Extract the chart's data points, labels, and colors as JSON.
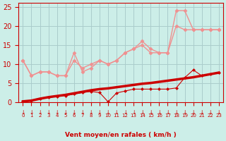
{
  "background_color": "#cceee8",
  "grid_color": "#aacccc",
  "x_labels": [
    "0",
    "1",
    "2",
    "3",
    "4",
    "5",
    "6",
    "7",
    "8",
    "9",
    "10",
    "11",
    "12",
    "13",
    "14",
    "15",
    "16",
    "17",
    "18",
    "19",
    "20",
    "21",
    "22",
    "23"
  ],
  "x_values": [
    0,
    1,
    2,
    3,
    4,
    5,
    6,
    7,
    8,
    9,
    10,
    11,
    12,
    13,
    14,
    15,
    16,
    17,
    18,
    19,
    20,
    21,
    22,
    23
  ],
  "ylim": [
    0,
    26
  ],
  "yticks": [
    0,
    5,
    10,
    15,
    20,
    25
  ],
  "series_rafales1": {
    "x": [
      0,
      1,
      2,
      3,
      4,
      5,
      6,
      7,
      8,
      9,
      10,
      11,
      12,
      13,
      14,
      15,
      16,
      17,
      18,
      19,
      20,
      21,
      22,
      23
    ],
    "y": [
      11,
      7,
      8,
      8,
      7,
      7,
      13,
      8,
      9,
      11,
      10,
      11,
      13,
      14,
      16,
      14,
      13,
      13,
      24,
      24,
      19,
      19,
      19,
      19
    ],
    "color": "#f09090",
    "lw": 1.0,
    "marker": "D",
    "ms": 2.5
  },
  "series_rafales2": {
    "x": [
      0,
      1,
      2,
      3,
      4,
      5,
      6,
      7,
      8,
      9,
      10,
      11,
      12,
      13,
      14,
      15,
      16,
      17,
      18,
      19,
      20,
      21,
      22,
      23
    ],
    "y": [
      11,
      7,
      8,
      8,
      7,
      7,
      11,
      9,
      10,
      11,
      10,
      11,
      13,
      14,
      15,
      13,
      13,
      13,
      20,
      19,
      19,
      19,
      19,
      19
    ],
    "color": "#f09090",
    "lw": 1.0,
    "marker": "D",
    "ms": 2.5
  },
  "series_mean_smooth": {
    "x": [
      0,
      1,
      2,
      3,
      4,
      5,
      6,
      7,
      8,
      9,
      10,
      11,
      12,
      13,
      14,
      15,
      16,
      17,
      18,
      19,
      20,
      21,
      22,
      23
    ],
    "y": [
      0.3,
      0.5,
      1.0,
      1.4,
      1.7,
      2.0,
      2.4,
      2.8,
      3.2,
      3.5,
      3.7,
      4.0,
      4.3,
      4.6,
      4.9,
      5.1,
      5.4,
      5.7,
      6.0,
      6.3,
      6.6,
      7.0,
      7.4,
      7.8
    ],
    "color": "#cc0000",
    "lw": 2.5
  },
  "series_mean_markers": {
    "x": [
      0,
      1,
      2,
      3,
      4,
      5,
      6,
      7,
      8,
      9,
      10,
      11,
      12,
      13,
      14,
      15,
      16,
      17,
      18,
      19,
      20,
      21,
      22,
      23
    ],
    "y": [
      0.3,
      0.5,
      1.0,
      1.3,
      1.6,
      1.8,
      2.2,
      2.6,
      2.9,
      2.6,
      0.2,
      2.5,
      3.0,
      3.5,
      3.5,
      3.5,
      3.5,
      3.5,
      3.8,
      6.5,
      8.5,
      7.0,
      7.5,
      7.8
    ],
    "color": "#cc0000",
    "lw": 0.8,
    "marker": "D",
    "ms": 2.0
  },
  "xlabel": "Vent moyen/en rafales ( km/h )",
  "arrow_color": "#cc0000",
  "tick_color": "#cc0000",
  "axis_label_color": "#cc0000"
}
